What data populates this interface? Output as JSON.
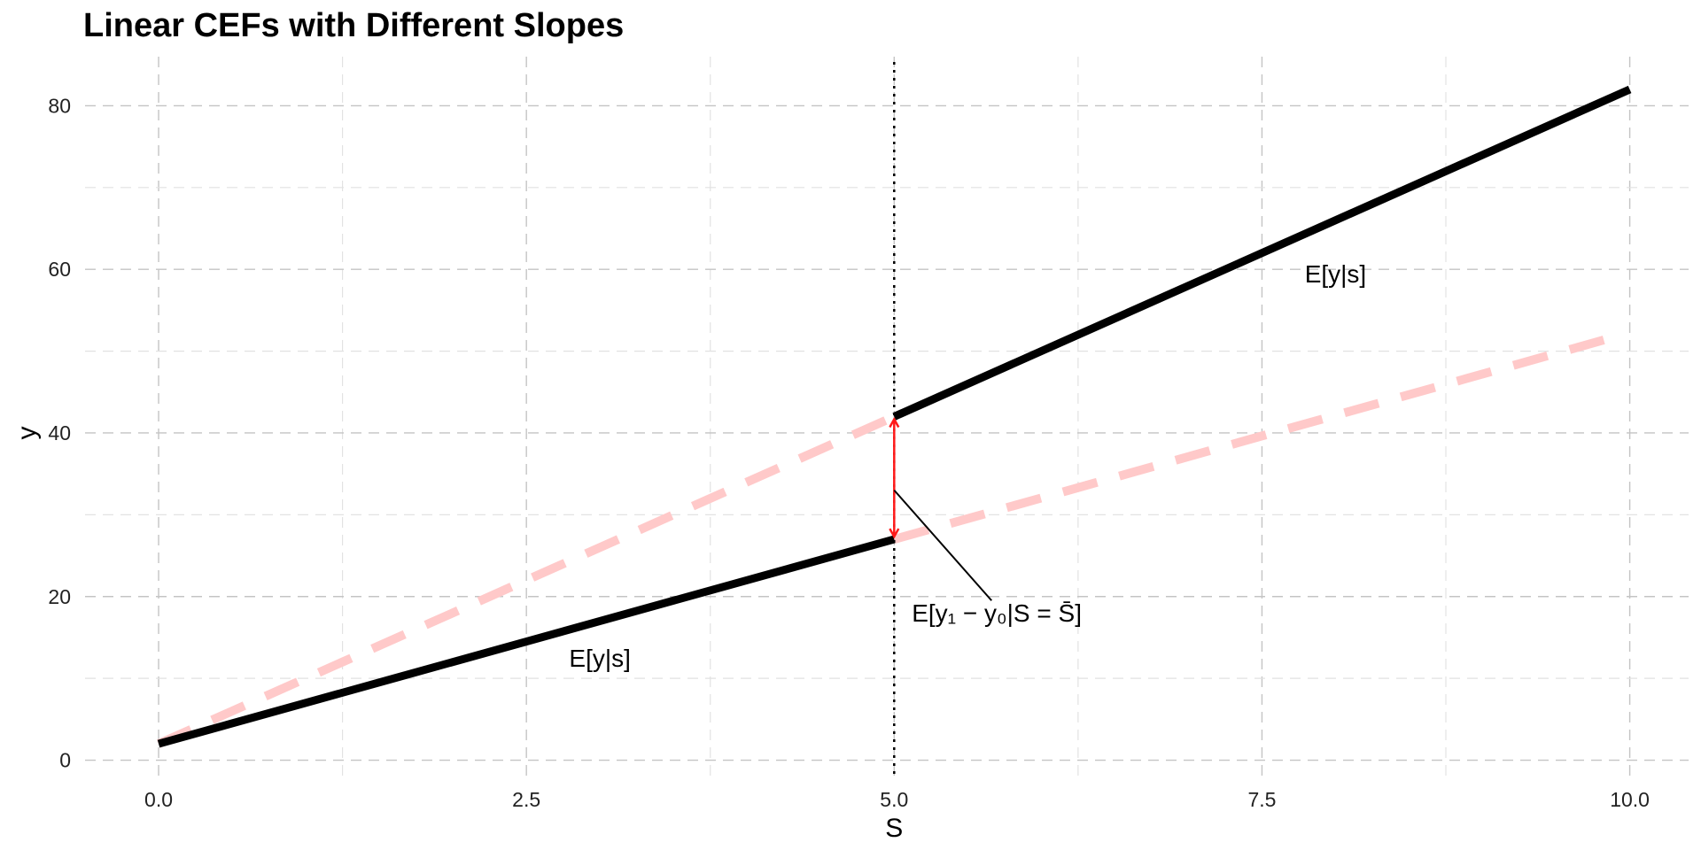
{
  "chart_data": {
    "type": "line",
    "title": "Linear CEFs with Different Slopes",
    "xlabel": "S",
    "ylabel": "y",
    "xlim": [
      -0.5,
      10.4
    ],
    "ylim": [
      -2,
      86
    ],
    "x_ticks": [
      0,
      2.5,
      5,
      7.5,
      10
    ],
    "x_tick_labels": [
      "0.0",
      "2.5",
      "5.0",
      "7.5",
      "10.0"
    ],
    "y_ticks": [
      0,
      20,
      40,
      60,
      80
    ],
    "y_tick_labels": [
      "0",
      "20",
      "40",
      "60",
      "80"
    ],
    "grid": true,
    "threshold_x": 5,
    "series": [
      {
        "style": "solid",
        "color": "#000000",
        "points": [
          [
            0,
            2
          ],
          [
            5,
            27
          ]
        ]
      },
      {
        "style": "solid",
        "color": "#000000",
        "points": [
          [
            5,
            42
          ],
          [
            10,
            82
          ]
        ]
      },
      {
        "style": "dashed",
        "color": "#ffc9c9",
        "points": [
          [
            0,
            2
          ],
          [
            5,
            42
          ]
        ]
      },
      {
        "style": "dashed",
        "color": "#ffc9c9",
        "points": [
          [
            5,
            27
          ],
          [
            9.85,
            51.5
          ]
        ]
      }
    ],
    "arrow": {
      "x": 5,
      "y_from": 27,
      "y_to": 42,
      "color": "#ff1a1a"
    },
    "annotations": [
      {
        "text": "E[y|s]",
        "x": 3.0,
        "y": 12.5
      },
      {
        "text": "E[y|s]",
        "x": 8.0,
        "y": 59.5
      },
      {
        "text": "E[y₁ − y₀|S = S̄]",
        "x": 5.12,
        "y": 18,
        "pointer_to": [
          5,
          33
        ]
      }
    ]
  }
}
